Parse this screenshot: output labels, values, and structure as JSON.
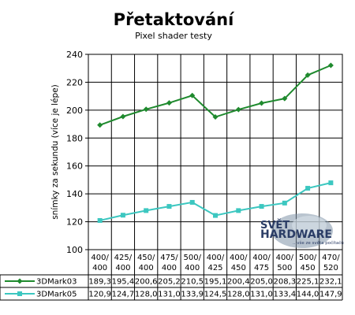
{
  "chart_data": {
    "type": "line",
    "title": "Přetaktování",
    "subtitle": "Pixel shader testy",
    "ylabel": "snímky za sekundu (více je lépe)",
    "ylim": [
      100,
      240
    ],
    "yticks": [
      "100",
      "120",
      "140",
      "160",
      "180",
      "200",
      "220",
      "240"
    ],
    "grid": "horizontal",
    "categories": [
      [
        "400/",
        "400"
      ],
      [
        "425/",
        "400"
      ],
      [
        "450/",
        "400"
      ],
      [
        "475/",
        "400"
      ],
      [
        "500/",
        "400"
      ],
      [
        "400/",
        "425"
      ],
      [
        "400/",
        "450"
      ],
      [
        "400/",
        "475"
      ],
      [
        "400/",
        "500"
      ],
      [
        "500/",
        "450"
      ],
      [
        "470/",
        "520"
      ]
    ],
    "series": [
      {
        "name": "3DMark03",
        "color": "#1f8a2e",
        "marker": "diamond",
        "values": [
          189.3,
          195.4,
          200.6,
          205.2,
          210.5,
          195.1,
          200.4,
          205.0,
          208.3,
          225.1,
          232.1
        ],
        "labels": [
          "189,3",
          "195,4",
          "200,6",
          "205,2",
          "210,5",
          "195,1",
          "200,4",
          "205,0",
          "208,3",
          "225,1",
          "232,1"
        ]
      },
      {
        "name": "3DMark05",
        "color": "#3cc7c0",
        "marker": "square",
        "values": [
          120.9,
          124.7,
          128.0,
          131.0,
          133.9,
          124.5,
          128.0,
          131.0,
          133.4,
          144.0,
          147.9
        ],
        "labels": [
          "120,9",
          "124,7",
          "128,0",
          "131,0",
          "133,9",
          "124,5",
          "128,0",
          "131,0",
          "133,4",
          "144,0",
          "147,9"
        ]
      }
    ]
  },
  "watermark": {
    "line1": "SVĚT",
    "line2": "HARDWARE",
    "line3": "...vše ze světa počítačů"
  }
}
